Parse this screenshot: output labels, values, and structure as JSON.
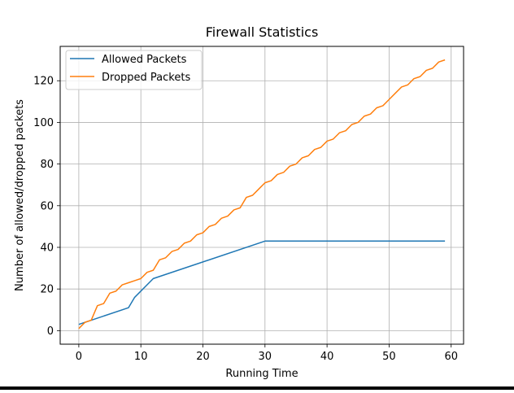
{
  "chart_data": {
    "type": "line",
    "title": "Firewall Statistics",
    "xlabel": "Running Time",
    "ylabel": "Number of allowed/dropped packets",
    "xlim": [
      -3,
      62
    ],
    "ylim": [
      -6.5,
      136.5
    ],
    "xticks": [
      0,
      10,
      20,
      30,
      40,
      50,
      60
    ],
    "yticks": [
      0,
      20,
      40,
      60,
      80,
      100,
      120
    ],
    "grid": true,
    "legend": "top-left",
    "series": [
      {
        "name": "Allowed Packets",
        "color": "#1f77b4",
        "x": [
          0,
          8,
          9,
          12,
          30,
          59
        ],
        "y": [
          3,
          11,
          16,
          25,
          43,
          43
        ]
      },
      {
        "name": "Dropped Packets",
        "color": "#ff7f0e",
        "x": [
          0,
          1,
          2,
          3,
          4,
          5,
          6,
          7,
          8,
          9,
          10,
          11,
          12,
          13,
          14,
          15,
          16,
          17,
          18,
          19,
          20,
          21,
          22,
          23,
          24,
          25,
          26,
          27,
          28,
          29,
          30,
          31,
          32,
          33,
          34,
          35,
          36,
          37,
          38,
          39,
          40,
          41,
          42,
          43,
          44,
          45,
          46,
          47,
          48,
          49,
          50,
          51,
          52,
          53,
          54,
          55,
          56,
          57,
          58,
          59
        ],
        "y": [
          1,
          4,
          5,
          12,
          13,
          18,
          19,
          22,
          23,
          24,
          25,
          28,
          29,
          34,
          35,
          38,
          39,
          42,
          43,
          46,
          47,
          50,
          51,
          54,
          55,
          58,
          59,
          64,
          65,
          68,
          71,
          72,
          75,
          76,
          79,
          80,
          83,
          84,
          87,
          88,
          91,
          92,
          95,
          96,
          99,
          100,
          103,
          104,
          107,
          108,
          111,
          114,
          117,
          118,
          121,
          122,
          125,
          126,
          129,
          130
        ]
      }
    ]
  }
}
